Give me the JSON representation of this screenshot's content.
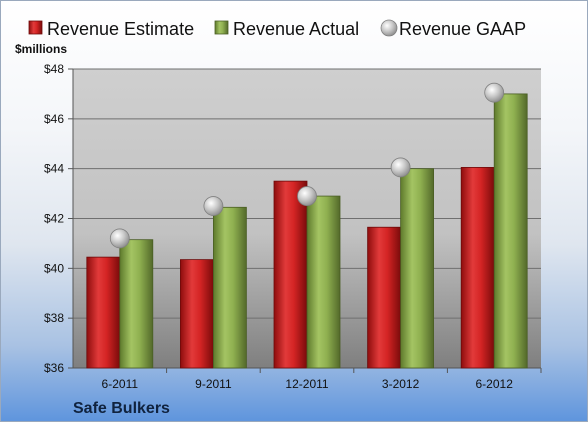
{
  "chart_data": {
    "type": "bar",
    "company": "Safe Bulkers",
    "unit_label": "$millions",
    "categories": [
      "6-2011",
      "9-2011",
      "12-2011",
      "3-2012",
      "6-2012"
    ],
    "series": [
      {
        "name": "Revenue Estimate",
        "kind": "bar",
        "color": "#cc1f1f",
        "values": [
          40.45,
          40.35,
          43.5,
          41.65,
          44.05
        ]
      },
      {
        "name": "Revenue Actual",
        "kind": "bar",
        "color": "#8aab4c",
        "values": [
          41.15,
          42.45,
          42.9,
          44.0,
          47.0
        ]
      },
      {
        "name": "Revenue GAAP",
        "kind": "marker",
        "color": "#b8b8b8",
        "values": [
          41.2,
          42.5,
          42.9,
          44.05,
          47.05
        ]
      }
    ],
    "ylim": [
      36,
      48
    ],
    "yticks": [
      36,
      38,
      40,
      42,
      44,
      46,
      48
    ],
    "ytick_labels": [
      "$36",
      "$38",
      "$40",
      "$42",
      "$44",
      "$46",
      "$48"
    ],
    "grid": true,
    "legend_position": "top"
  }
}
